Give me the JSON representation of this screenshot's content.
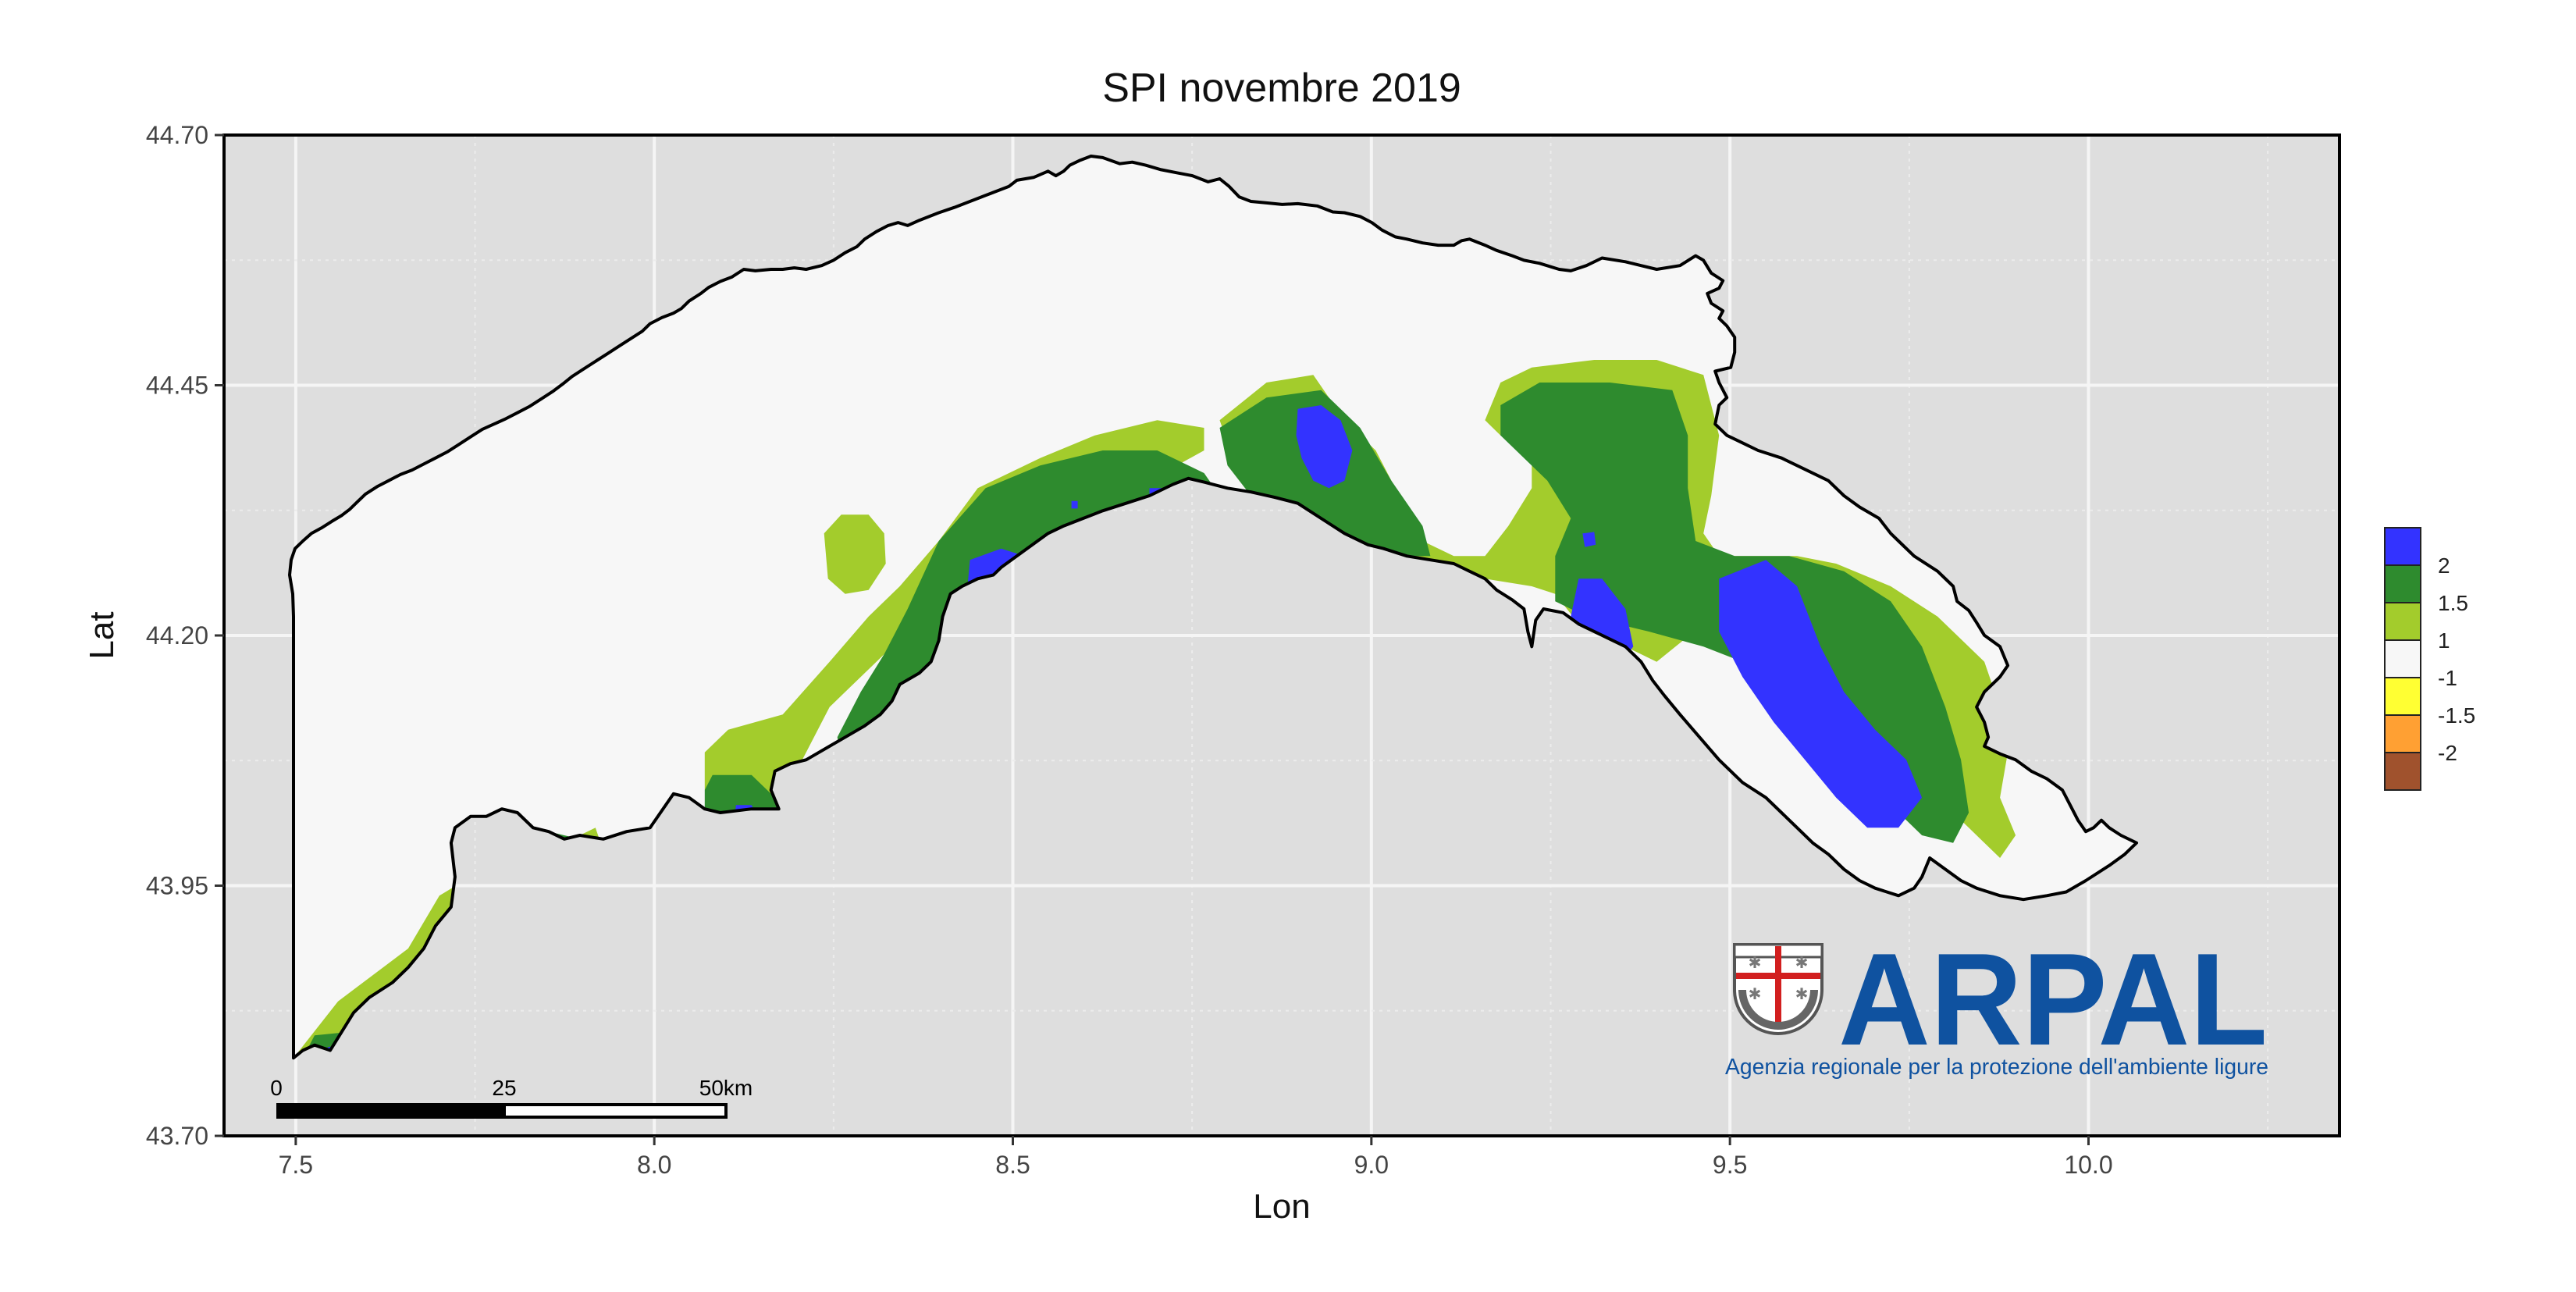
{
  "title": "SPI novembre 2019",
  "axes": {
    "xlabel": "Lon",
    "ylabel": "Lat",
    "xlim": [
      7.4,
      10.35
    ],
    "ylim": [
      43.7,
      44.7
    ],
    "x_ticks": [
      "7.5",
      "8.0",
      "8.5",
      "9.0",
      "9.5",
      "10.0"
    ],
    "y_ticks": [
      "43.70",
      "43.95",
      "44.20",
      "44.45",
      "44.70"
    ],
    "grid": true
  },
  "legend": {
    "placement": "right",
    "items": [
      {
        "label": "2",
        "color": "#3333ff"
      },
      {
        "label": "1.5",
        "color": "#2e8b2e"
      },
      {
        "label": "1",
        "color": "#a3cc2c"
      },
      {
        "label": "-1",
        "color": "#f7f7f7"
      },
      {
        "label": "-1.5",
        "color": "#ffff33"
      },
      {
        "label": "-2",
        "color": "#ffa033"
      },
      {
        "label": "",
        "color": "#a0522d"
      }
    ]
  },
  "scalebar": {
    "labels": [
      "0",
      "25",
      "50km"
    ]
  },
  "logo": {
    "name": "ARPAL",
    "subtitle": "Agenzia regionale per la protezione dell'ambiente ligure",
    "color": "#0f52a0"
  },
  "colors": {
    "panel_bg": "#dedede",
    "blue": "#3333ff",
    "dark_green": "#2e8b2e",
    "light_green": "#a3cc2c",
    "white": "#f7f7f7"
  }
}
